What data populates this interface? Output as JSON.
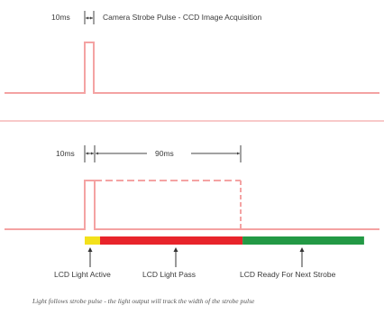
{
  "top_section": {
    "duration_label": "10ms",
    "title": "Camera Strobe Pulse - CCD Image Acquisition"
  },
  "bottom_section": {
    "short_pulse_label": "10ms",
    "long_pulse_label": "90ms"
  },
  "status_bar": {
    "segments": [
      {
        "label": "LCD Light Active",
        "color": "#f3e11b",
        "fraction": 0.055
      },
      {
        "label": "LCD Light Pass",
        "color": "#e8242b",
        "fraction": 0.51
      },
      {
        "label": "LCD Ready For Next Strobe",
        "color": "#239945",
        "fraction": 0.435
      }
    ]
  },
  "caption": "Light follows strobe pulse - the light output will track the width of the strobe pulse",
  "colors": {
    "pulse": "#f4a3a3",
    "separator": "#f5b9b9",
    "arrow": "#333333"
  }
}
